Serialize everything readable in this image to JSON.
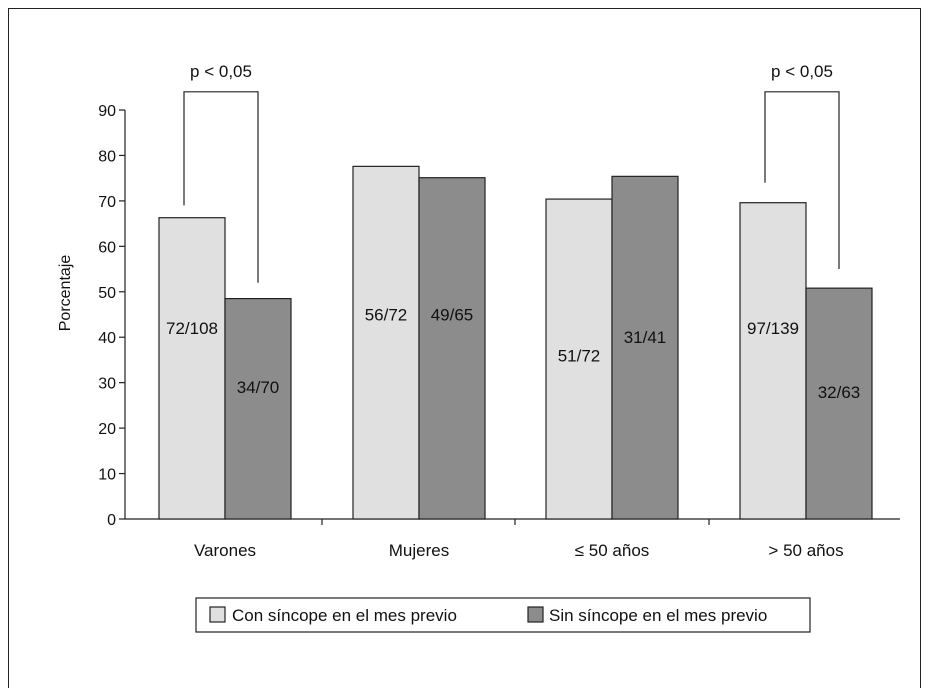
{
  "chart_data": {
    "type": "bar",
    "title": "",
    "xlabel": "",
    "ylabel": "Porcentaje",
    "ylim": [
      0,
      90
    ],
    "yticks": [
      0,
      10,
      20,
      30,
      40,
      50,
      60,
      70,
      80,
      90
    ],
    "categories": [
      "Varones",
      "Mujeres",
      "≤ 50 años",
      "> 50 años"
    ],
    "series": [
      {
        "name": "Con síncope en el mes previo",
        "color": "#e0e0e0",
        "values": [
          66.3,
          77.6,
          70.4,
          69.6
        ],
        "labels": [
          "72/108",
          "56/72",
          "51/72",
          "97/139"
        ],
        "label_values": [
          42,
          45,
          36,
          42
        ]
      },
      {
        "name": "Sin síncope en el mes previo",
        "color": "#8c8c8c",
        "values": [
          48.5,
          75.1,
          75.4,
          50.8
        ],
        "labels": [
          "34/70",
          "49/65",
          "31/41",
          "32/63"
        ],
        "label_values": [
          29,
          45,
          40,
          28
        ]
      }
    ],
    "significance": [
      {
        "category_index": 0,
        "label": "p < 0,05",
        "left_end": 69,
        "right_end": 52,
        "top": 94
      },
      {
        "category_index": 3,
        "label": "p < 0,05",
        "left_end": 74,
        "right_end": 55,
        "top": 94
      }
    ],
    "grid": false,
    "legend_position": "bottom"
  }
}
